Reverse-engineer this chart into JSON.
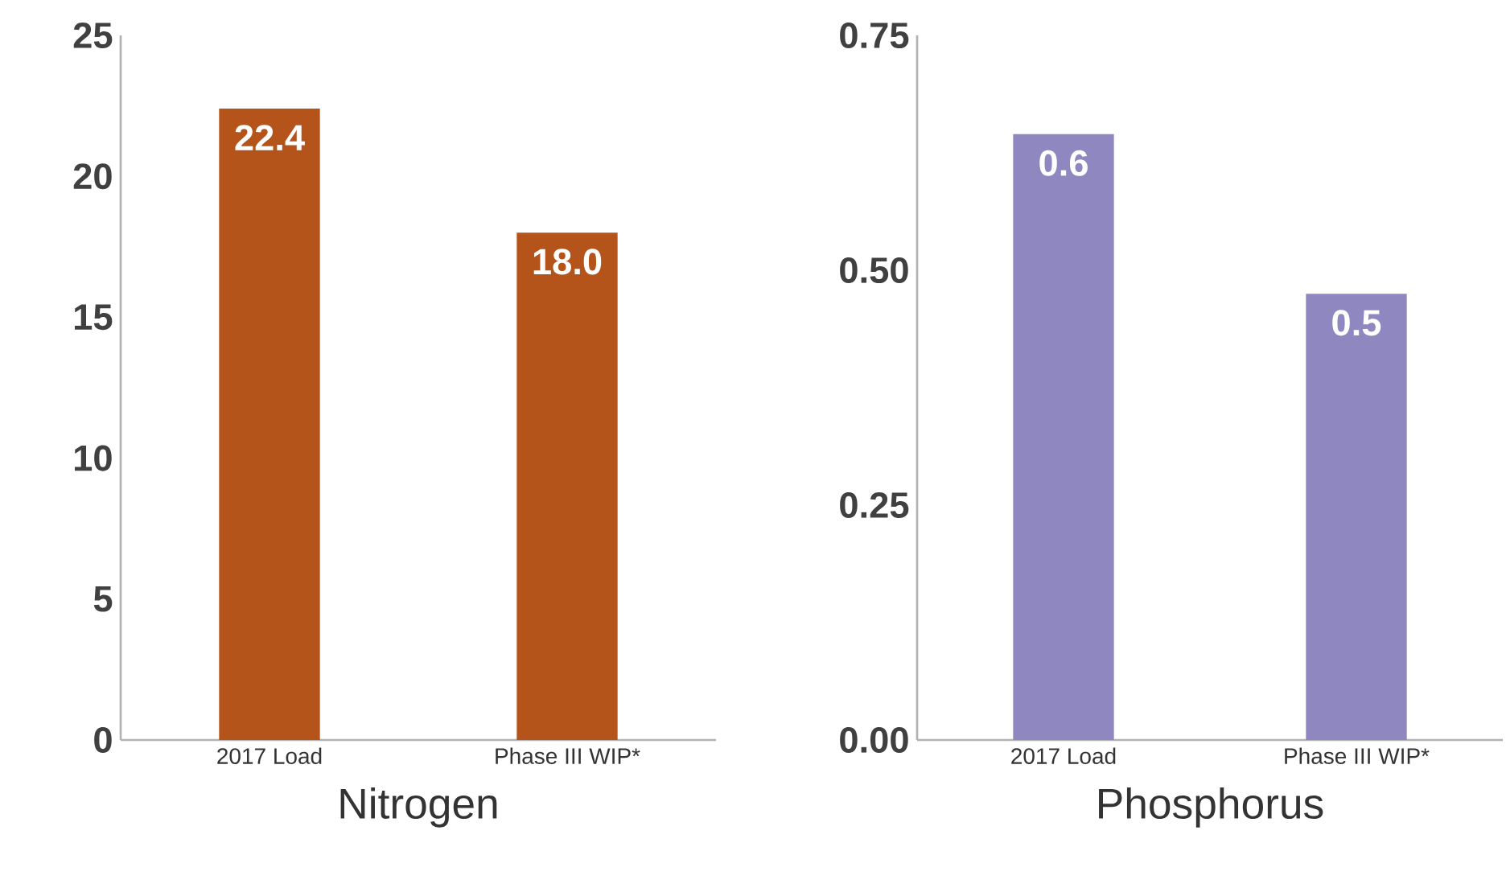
{
  "chart_data": [
    {
      "type": "bar",
      "xlabel": "Nitrogen",
      "categories": [
        "2017 Load",
        "Phase III WIP*"
      ],
      "values": [
        22.4,
        18.0
      ],
      "value_labels": [
        "22.4",
        "18.0"
      ],
      "color": "#b5541a",
      "ylim": [
        0,
        25
      ],
      "yticks": [
        0,
        5,
        10,
        15,
        20,
        25
      ],
      "grid": false
    },
    {
      "type": "bar",
      "xlabel": "Phosphorus",
      "categories": [
        "2017 Load",
        "Phase III WIP*"
      ],
      "values": [
        0.645,
        0.475
      ],
      "value_labels": [
        "0.6",
        "0.5"
      ],
      "color": "#8f87c0",
      "ylim": [
        0,
        0.75
      ],
      "yticks": [
        {
          "value": 0,
          "label": "0.00"
        },
        {
          "value": 0.25,
          "label": "0.25"
        },
        {
          "value": 0.5,
          "label": "0.50"
        },
        {
          "value": 0.75,
          "label": "0.75"
        }
      ],
      "grid": false
    }
  ]
}
